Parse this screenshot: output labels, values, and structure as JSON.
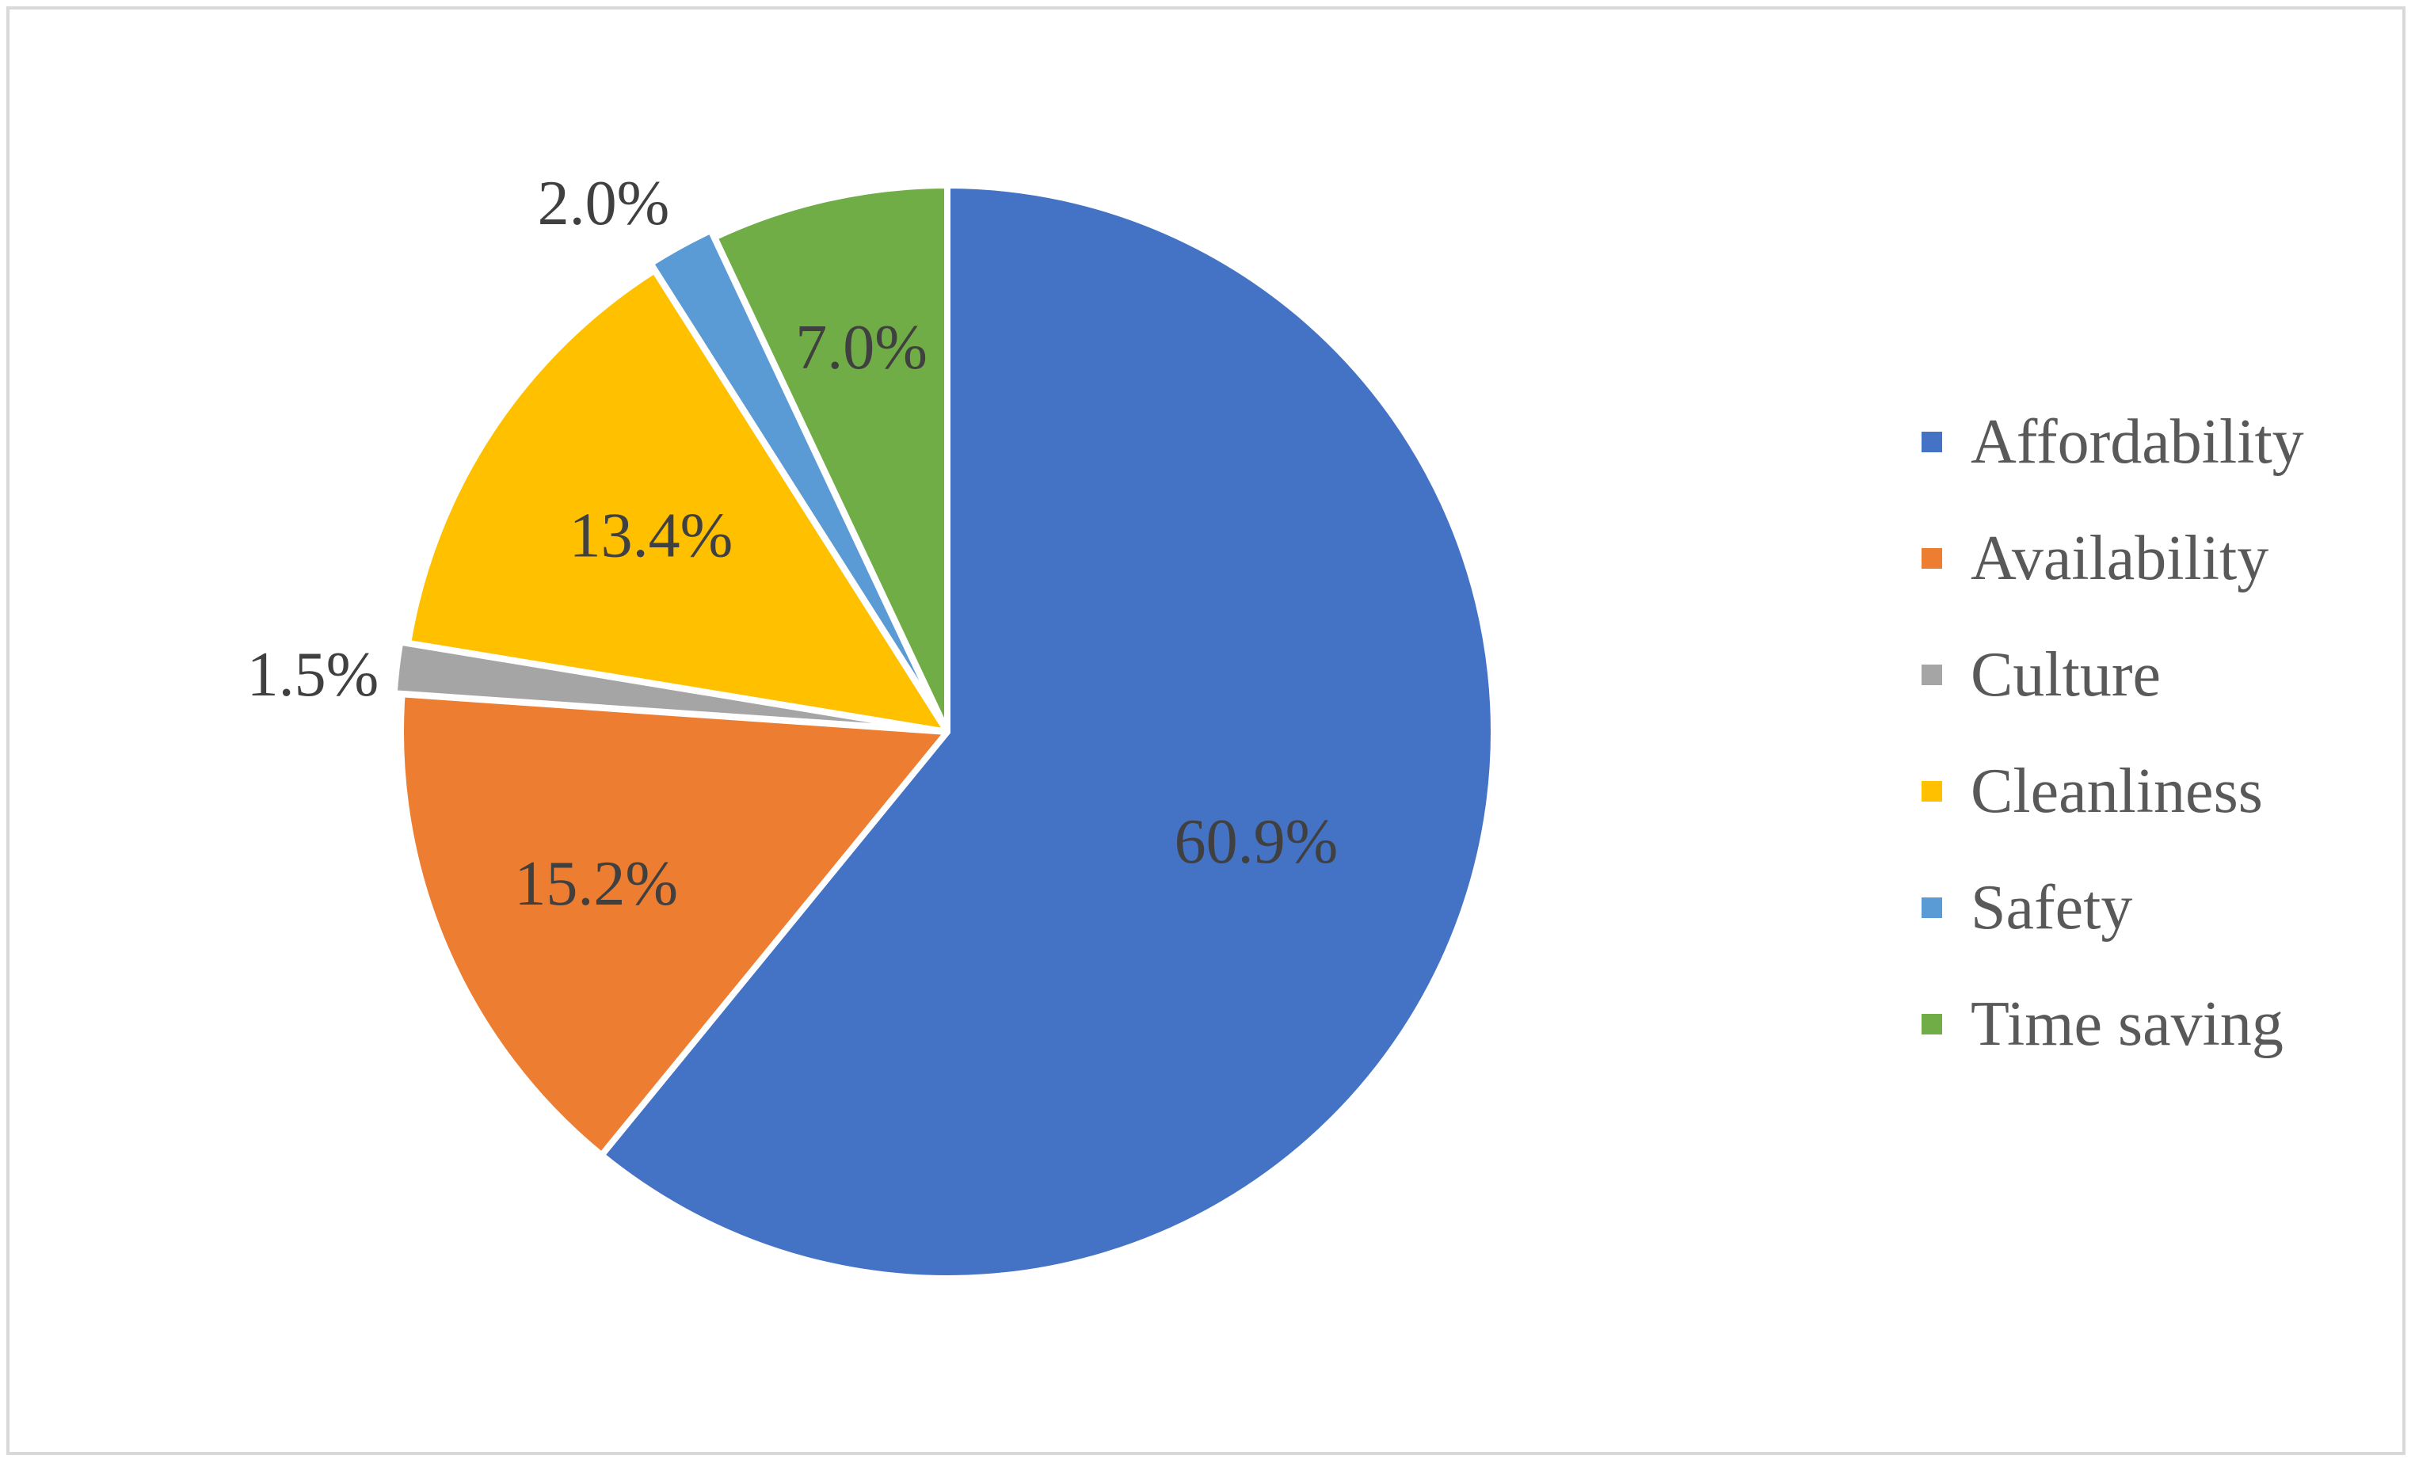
{
  "chart_data": {
    "type": "pie",
    "title": "",
    "slices": [
      {
        "label": "Affordability",
        "value": 60.9,
        "display": "60.9%",
        "color": "#4472C4"
      },
      {
        "label": "Availability",
        "value": 15.2,
        "display": "15.2%",
        "color": "#ED7D31"
      },
      {
        "label": "Culture",
        "value": 1.5,
        "display": "1.5%",
        "color": "#A5A5A5"
      },
      {
        "label": "Cleanliness",
        "value": 13.4,
        "display": "13.4%",
        "color": "#FFC000"
      },
      {
        "label": "Safety",
        "value": 2.0,
        "display": "2.0%",
        "color": "#5B9BD5"
      },
      {
        "label": "Time saving",
        "value": 7.0,
        "display": "7.0%",
        "color": "#70AD47"
      }
    ],
    "start_angle_deg": 0,
    "direction": "clockwise",
    "legend_position": "right"
  }
}
